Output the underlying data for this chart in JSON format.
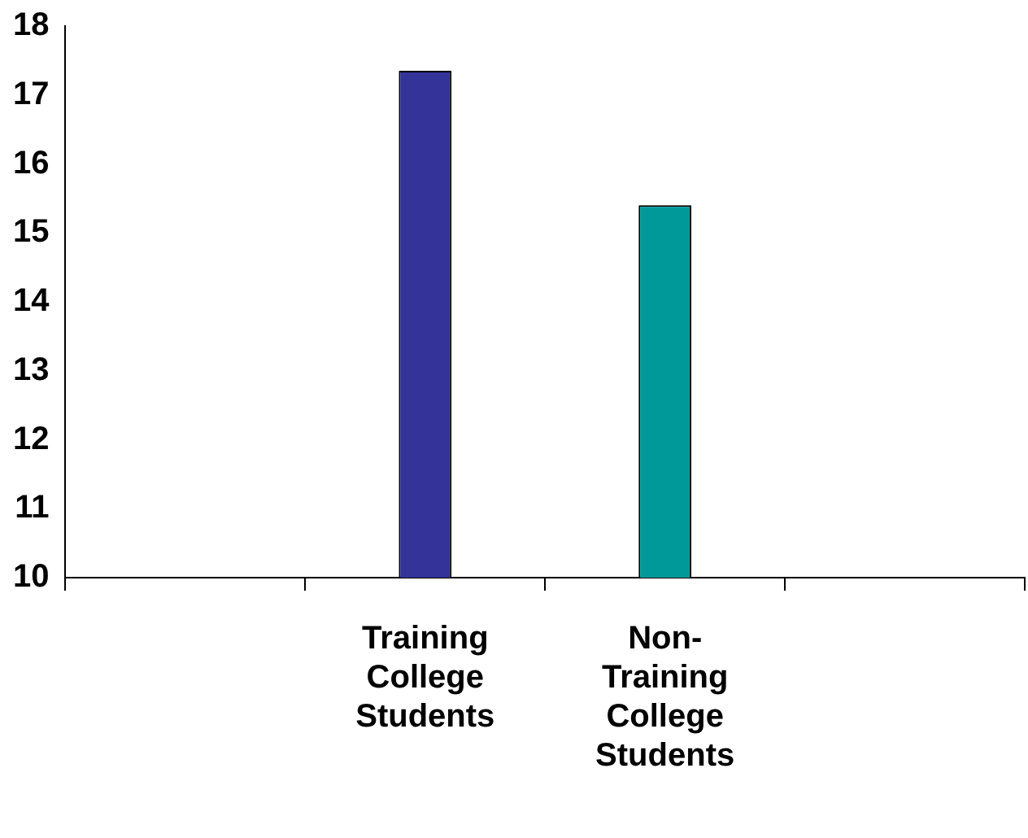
{
  "chart_data": {
    "type": "bar",
    "categories": [
      null,
      "Training College Students",
      "Non-Training College Students",
      null
    ],
    "values": [
      null,
      17.35,
      15.4,
      null
    ],
    "colors": [
      "#333399",
      "#333399",
      "#009999",
      "#009999"
    ],
    "ylim": [
      10,
      18
    ],
    "yticks": [
      10,
      11,
      12,
      13,
      14,
      15,
      16,
      17,
      18
    ],
    "grid": false,
    "legend": false
  }
}
